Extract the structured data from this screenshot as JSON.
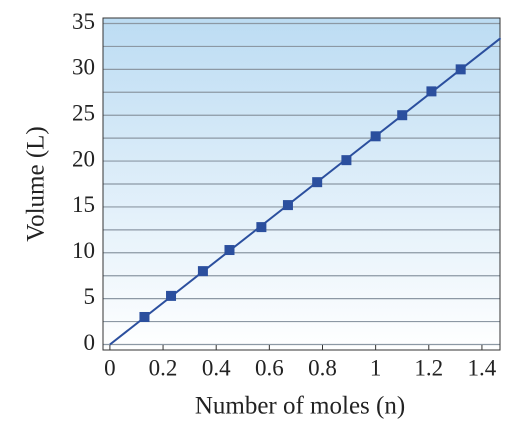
{
  "chart_data": {
    "type": "scatter",
    "xlabel": "Number of moles (n)",
    "ylabel": "Volume (L)",
    "x": [
      0.13,
      0.23,
      0.35,
      0.45,
      0.57,
      0.67,
      0.78,
      0.89,
      1.0,
      1.1,
      1.21,
      1.32
    ],
    "values": [
      3.0,
      5.3,
      8.0,
      10.3,
      12.8,
      15.2,
      17.7,
      20.1,
      22.7,
      25.0,
      27.6,
      30.0
    ],
    "color": "#2b4f9e",
    "line": {
      "x": [
        0,
        1.47
      ],
      "values": [
        0,
        33.4
      ],
      "color": "#2b4f9e"
    },
    "xlim": [
      -0.026,
      1.468
    ],
    "ylim": [
      -0.6,
      35.6
    ],
    "xticks": [
      0,
      0.2,
      0.4,
      0.6,
      0.8,
      1,
      1.2,
      1.4
    ],
    "yticks": [
      0,
      5,
      10,
      15,
      20,
      25,
      30,
      35
    ],
    "y_minor_ticks": [
      2.5,
      7.5,
      12.5,
      17.5,
      22.5,
      27.5,
      32.5
    ],
    "grid": true
  }
}
